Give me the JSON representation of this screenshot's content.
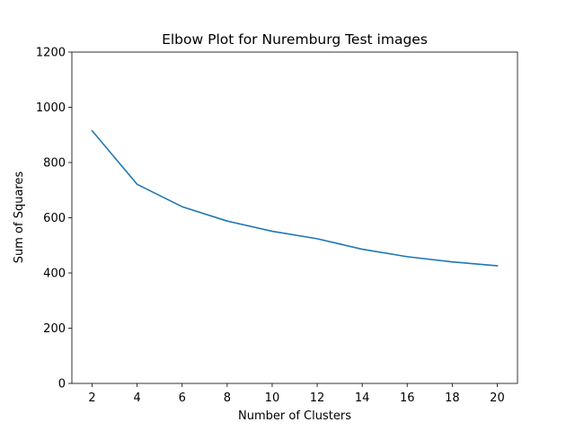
{
  "chart_data": {
    "type": "line",
    "title": "Elbow Plot for Nuremburg Test images",
    "xlabel": "Number of Clusters",
    "ylabel": "Sum of Squares",
    "x": [
      2,
      4,
      6,
      8,
      10,
      12,
      14,
      16,
      18,
      20
    ],
    "series": [
      {
        "values": [
          915,
          721,
          640,
          588,
          551,
          524,
          486,
          459,
          440,
          426
        ]
      }
    ],
    "xlim": [
      1.1,
      20.9
    ],
    "ylim": [
      0,
      1200
    ],
    "xticks": [
      "2",
      "4",
      "6",
      "8",
      "10",
      "12",
      "14",
      "16",
      "18",
      "20"
    ],
    "yticks": [
      "0",
      "200",
      "400",
      "600",
      "800",
      "1000",
      "1200"
    ],
    "grid": false,
    "legend": "none",
    "line_color": "#1f77b4"
  }
}
